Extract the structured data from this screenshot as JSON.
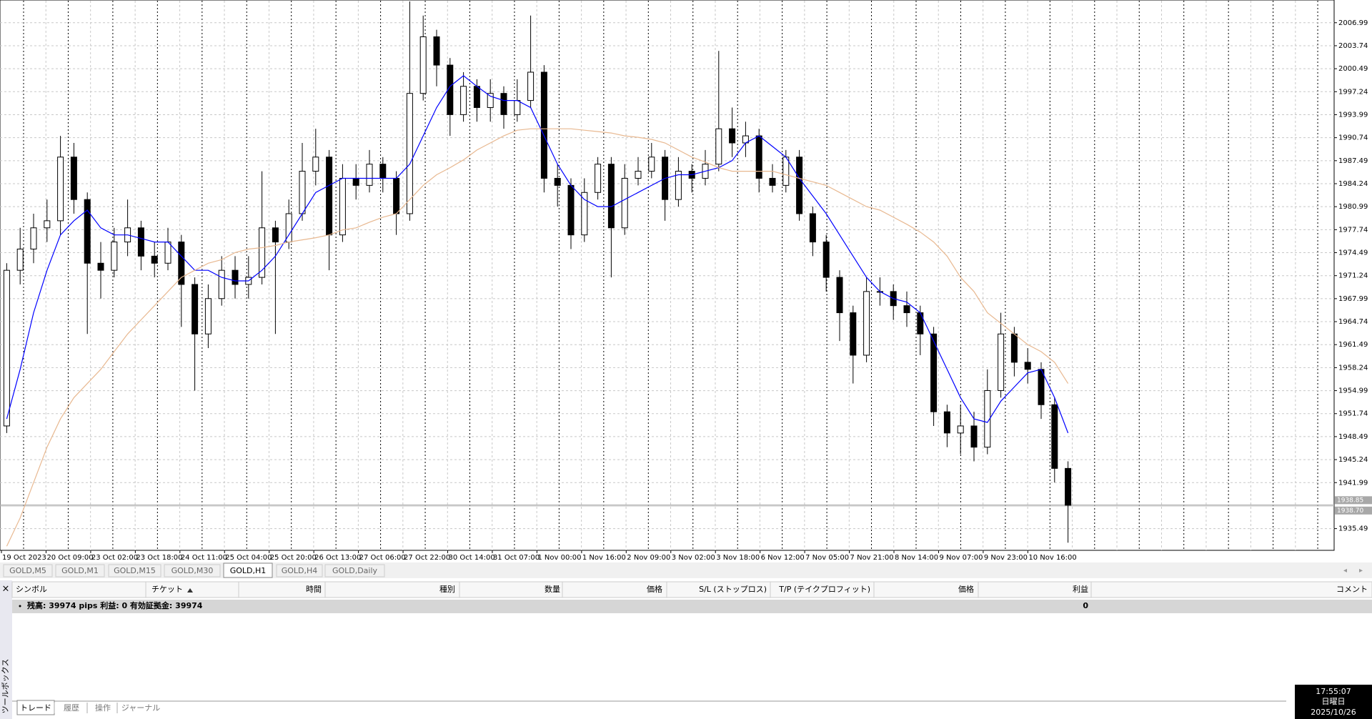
{
  "chart_data": {
    "type": "candlestick",
    "x_labels": [
      "19 Oct 2023",
      "20 Oct 09:00",
      "23 Oct 02:00",
      "23 Oct 18:00",
      "24 Oct 11:00",
      "25 Oct 04:00",
      "25 Oct 20:00",
      "26 Oct 13:00",
      "27 Oct 06:00",
      "27 Oct 22:00",
      "30 Oct 14:00",
      "31 Oct 07:00",
      "1 Nov 00:00",
      "1 Nov 16:00",
      "2 Nov 09:00",
      "3 Nov 02:00",
      "3 Nov 18:00",
      "6 Nov 12:00",
      "7 Nov 05:00",
      "7 Nov 21:00",
      "8 Nov 14:00",
      "9 Nov 07:00",
      "9 Nov 23:00",
      "10 Nov 16:00"
    ],
    "open": [
      1950,
      1972,
      1975,
      1978,
      1979,
      1988,
      1982,
      1973,
      1972,
      1976,
      1978,
      1974,
      1973,
      1976,
      1970,
      1963,
      1968,
      1972,
      1970,
      1971,
      1978,
      1976,
      1980,
      1986,
      1988,
      1977,
      1985,
      1984,
      1987,
      1985,
      1980,
      1997,
      2005,
      2001,
      1994,
      1998,
      1995,
      1997,
      1994,
      1996,
      2000,
      1985,
      1984,
      1977,
      1983,
      1987,
      1978,
      1985,
      1986,
      1988,
      1982,
      1986,
      1985,
      1987,
      1992,
      1990,
      1991,
      1985,
      1984,
      1988,
      1980,
      1976,
      1971,
      1966,
      1960,
      1969,
      1969,
      1967,
      1966,
      1963,
      1952,
      1949,
      1950,
      1947,
      1955,
      1963,
      1959,
      1958,
      1953,
      1944
    ],
    "high": [
      1973,
      1978,
      1980,
      1982,
      1991,
      1990,
      1983,
      1976,
      1978,
      1982,
      1979,
      1976,
      1978,
      1977,
      1971,
      1970,
      1974,
      1974,
      1974,
      1986,
      1979,
      1982,
      1990,
      1992,
      1989,
      1987,
      1987,
      1989,
      1988,
      1986,
      2010,
      2008,
      2006,
      2002,
      2000,
      1999,
      1999,
      1998,
      1999,
      2008,
      2001,
      1987,
      1985,
      1985,
      1988,
      1988,
      1987,
      1988,
      1990,
      1989,
      1988,
      1987,
      1989,
      2003,
      1995,
      1993,
      1992,
      1987,
      1989,
      1989,
      1981,
      1977,
      1972,
      1967,
      1971,
      1971,
      1970,
      1969,
      1967,
      1964,
      1953,
      1953,
      1952,
      1958,
      1966,
      1964,
      1961,
      1959,
      1954,
      1945
    ],
    "low": [
      1949,
      1970,
      1973,
      1976,
      1977,
      1980,
      1963,
      1968,
      1971,
      1974,
      1972,
      1971,
      1972,
      1964,
      1955,
      1961,
      1967,
      1968,
      1968,
      1970,
      1963,
      1975,
      1979,
      1984,
      1972,
      1976,
      1982,
      1983,
      1983,
      1977,
      1979,
      1996,
      1998,
      1991,
      1993,
      1993,
      1993,
      1992,
      1993,
      1995,
      1983,
      1981,
      1975,
      1976,
      1982,
      1971,
      1977,
      1984,
      1985,
      1979,
      1981,
      1983,
      1984,
      1986,
      1988,
      1988,
      1983,
      1983,
      1983,
      1979,
      1974,
      1969,
      1962,
      1956,
      1959,
      1967,
      1965,
      1964,
      1960,
      1950,
      1947,
      1946,
      1945,
      1946,
      1954,
      1957,
      1956,
      1951,
      1942,
      1933.5
    ],
    "close": [
      1972,
      1975,
      1978,
      1979,
      1988,
      1982,
      1973,
      1972,
      1976,
      1978,
      1974,
      1973,
      1976,
      1970,
      1963,
      1968,
      1972,
      1970,
      1971,
      1978,
      1976,
      1980,
      1986,
      1988,
      1977,
      1985,
      1984,
      1987,
      1985,
      1980,
      1997,
      2005,
      2001,
      1994,
      1998,
      1995,
      1997,
      1994,
      1996,
      2000,
      1985,
      1984,
      1977,
      1983,
      1987,
      1978,
      1985,
      1986,
      1988,
      1982,
      1986,
      1985,
      1987,
      1992,
      1990,
      1991,
      1985,
      1984,
      1988,
      1980,
      1976,
      1971,
      1966,
      1960,
      1969,
      1969,
      1967,
      1966,
      1963,
      1952,
      1949,
      1950,
      1947,
      1955,
      1963,
      1959,
      1958,
      1953,
      1944,
      1938.8
    ],
    "up_color": "#ffffff",
    "down_color": "#000000",
    "wick_color": "#000000",
    "lines": [
      {
        "color": "#0000ff",
        "values": [
          1951,
          1958,
          1966,
          1972,
          1977,
          1979,
          1980.5,
          1978,
          1977,
          1977,
          1976.5,
          1976,
          1976,
          1974,
          1972,
          1972,
          1971,
          1970.5,
          1970.5,
          1972,
          1974,
          1977,
          1980,
          1983,
          1984,
          1985,
          1985,
          1985,
          1985,
          1985,
          1987,
          1991,
          1995,
          1998,
          1999.5,
          1998,
          1996.6,
          1996,
          1996,
          1995,
          1991,
          1987,
          1984,
          1982,
          1981,
          1981,
          1982,
          1983,
          1984,
          1985,
          1985.5,
          1985.5,
          1986,
          1986.5,
          1987.5,
          1990,
          1991,
          1989.5,
          1988,
          1985,
          1982.5,
          1980,
          1977,
          1974,
          1971,
          1969,
          1968,
          1967.5,
          1966,
          1962,
          1958,
          1954,
          1951,
          1950.5,
          1953.5,
          1955.5,
          1957.5,
          1958,
          1954,
          1949
        ]
      },
      {
        "color": "#e8b890",
        "values": [
          1933,
          1937,
          1942,
          1947,
          1951,
          1954,
          1956,
          1958,
          1960.5,
          1963,
          1965,
          1967,
          1969,
          1971,
          1972,
          1973,
          1973.5,
          1974.5,
          1975,
          1975.2,
          1975.5,
          1976,
          1976.3,
          1976.6,
          1977,
          1977.7,
          1978,
          1978.8,
          1979.5,
          1980,
          1982,
          1984,
          1985.5,
          1986.5,
          1987.6,
          1989,
          1990,
          1991,
          1991.8,
          1992,
          1992,
          1992,
          1992,
          1991.8,
          1991.6,
          1991.4,
          1991,
          1990.8,
          1990.5,
          1990,
          1989,
          1988,
          1987.3,
          1986.5,
          1986,
          1986,
          1986,
          1986,
          1985.5,
          1985,
          1984.5,
          1984,
          1983,
          1982,
          1981,
          1980.5,
          1979.5,
          1978.5,
          1977.4,
          1976,
          1974,
          1971,
          1969,
          1966,
          1964.5,
          1963,
          1961.5,
          1960.5,
          1959,
          1956
        ]
      }
    ],
    "ylim": [
      1932.42,
      2010.2
    ],
    "yticks": [
      2006.99,
      2003.74,
      2000.49,
      1997.24,
      1993.99,
      1990.74,
      1987.49,
      1984.24,
      1980.99,
      1977.74,
      1974.49,
      1971.24,
      1967.99,
      1964.74,
      1961.49,
      1958.24,
      1954.99,
      1951.74,
      1948.49,
      1945.24,
      1941.99,
      1935.49
    ],
    "price_lines": [
      {
        "value": 1938.85,
        "label": "1938.85"
      },
      {
        "value": 1938.7,
        "label": "1938.70"
      }
    ],
    "grid": true
  },
  "tabs": [
    "GOLD,M5",
    "GOLD,M1",
    "GOLD,M15",
    "GOLD,M30",
    "GOLD,H1",
    "GOLD,H4",
    "GOLD,Daily"
  ],
  "active_tab": 4,
  "terminal": {
    "columns": [
      "シンボル",
      "チケット",
      "時間",
      "種別",
      "数量",
      "価格",
      "S/L (ストップロス)",
      "T/P (テイクプロフィット)",
      "価格",
      "利益",
      "コメント"
    ],
    "balance": "残高: 39974 pips  利益: 0  有効証拠金: 39974",
    "profit": 0,
    "side_label": "ツールボックス",
    "bottom_tabs": [
      "トレード",
      "履歴",
      "操作",
      "ジャーナル"
    ]
  },
  "clock": {
    "time": "17:55:07",
    "day": "日曜日",
    "date": "2025/10/26"
  }
}
